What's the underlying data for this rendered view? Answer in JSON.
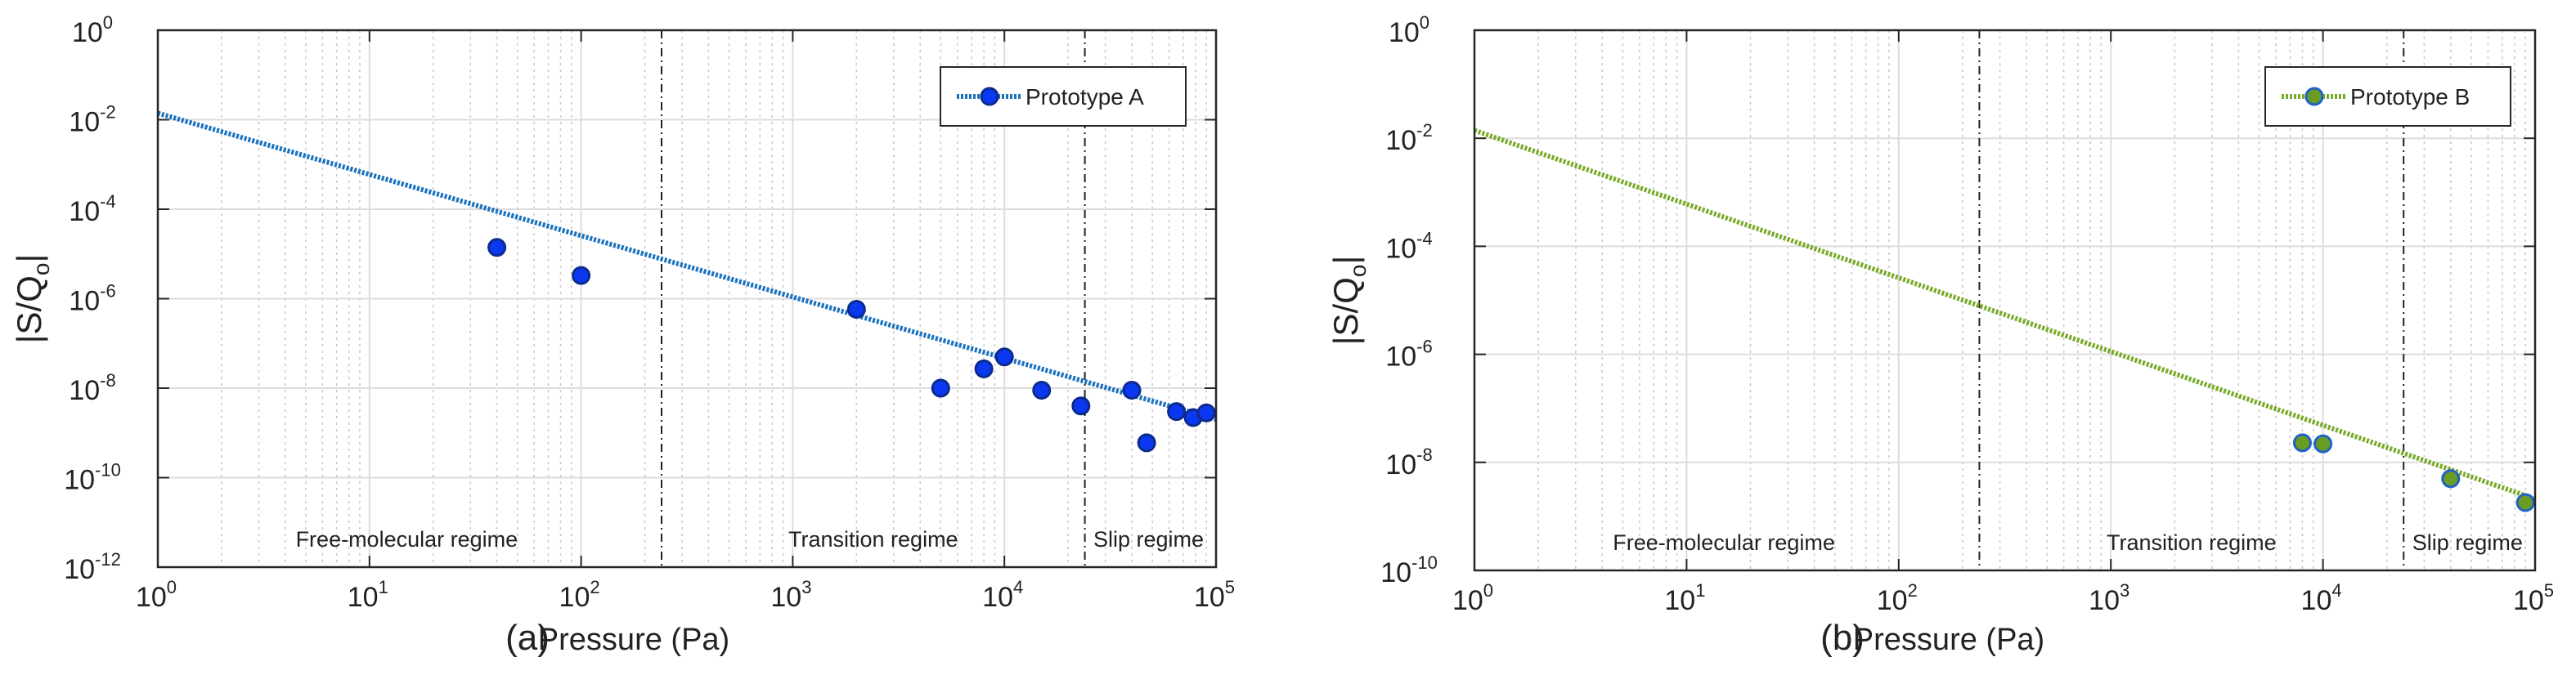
{
  "chart_data": [
    {
      "type": "scatter",
      "panel_label": "(a)",
      "xlabel": "Pressure (Pa)",
      "ylabel_main": "|S/Q",
      "ylabel_sub": "o",
      "ylabel_end": "|",
      "x_scale": "log",
      "y_scale": "log",
      "xlim": [
        1,
        100000
      ],
      "ylim": [
        1e-12,
        1
      ],
      "x_ticks": [
        {
          "base": "10",
          "exp": "0",
          "value": 1
        },
        {
          "base": "10",
          "exp": "1",
          "value": 10
        },
        {
          "base": "10",
          "exp": "2",
          "value": 100
        },
        {
          "base": "10",
          "exp": "3",
          "value": 1000
        },
        {
          "base": "10",
          "exp": "4",
          "value": 10000
        },
        {
          "base": "10",
          "exp": "5",
          "value": 100000
        }
      ],
      "y_ticks": [
        {
          "base": "10",
          "exp": "0",
          "value": 1
        },
        {
          "base": "10",
          "exp": "-2",
          "value": 0.01
        },
        {
          "base": "10",
          "exp": "-4",
          "value": 0.0001
        },
        {
          "base": "10",
          "exp": "-6",
          "value": 1e-06
        },
        {
          "base": "10",
          "exp": "-8",
          "value": 1e-08
        },
        {
          "base": "10",
          "exp": "-10",
          "value": 1e-10
        },
        {
          "base": "10",
          "exp": "-12",
          "value": 1e-12
        }
      ],
      "grid": true,
      "legend_position": "top-right",
      "series": [
        {
          "name": "Prototype A",
          "line_color": "#1a72bf",
          "marker_fill": "#0a38f0",
          "marker_edge": "#0b2a8c",
          "fit_line": {
            "x": [
              1,
              100000
            ],
            "y": [
              0.014,
              2e-09
            ]
          },
          "points": [
            {
              "x": 40,
              "y": 1.4e-05
            },
            {
              "x": 100,
              "y": 3.3e-06
            },
            {
              "x": 2000,
              "y": 5.8e-07
            },
            {
              "x": 5000,
              "y": 1e-08
            },
            {
              "x": 8000,
              "y": 2.7e-08
            },
            {
              "x": 10000,
              "y": 5e-08
            },
            {
              "x": 15000,
              "y": 9e-09
            },
            {
              "x": 23000,
              "y": 4e-09
            },
            {
              "x": 40000,
              "y": 9e-09
            },
            {
              "x": 47000,
              "y": 6e-10
            },
            {
              "x": 65000,
              "y": 3e-09
            },
            {
              "x": 78000,
              "y": 2.2e-09
            },
            {
              "x": 90000,
              "y": 2.8e-09
            }
          ]
        }
      ],
      "regime_boundaries": [
        240,
        24000
      ],
      "regimes": [
        {
          "label": "Free-molecular regime",
          "x": 15
        },
        {
          "label": "Transition regime",
          "x": 2400
        },
        {
          "label": "Slip regime",
          "x": 48000
        }
      ]
    },
    {
      "type": "scatter",
      "panel_label": "(b)",
      "xlabel": "Pressure (Pa)",
      "ylabel_main": "|S/Q",
      "ylabel_sub": "o",
      "ylabel_end": "|",
      "x_scale": "log",
      "y_scale": "log",
      "xlim": [
        1,
        100000
      ],
      "ylim": [
        1e-10,
        1
      ],
      "x_ticks": [
        {
          "base": "10",
          "exp": "0",
          "value": 1
        },
        {
          "base": "10",
          "exp": "1",
          "value": 10
        },
        {
          "base": "10",
          "exp": "2",
          "value": 100
        },
        {
          "base": "10",
          "exp": "3",
          "value": 1000
        },
        {
          "base": "10",
          "exp": "4",
          "value": 10000
        },
        {
          "base": "10",
          "exp": "5",
          "value": 100000
        }
      ],
      "y_ticks": [
        {
          "base": "10",
          "exp": "0",
          "value": 1
        },
        {
          "base": "10",
          "exp": "-2",
          "value": 0.01
        },
        {
          "base": "10",
          "exp": "-4",
          "value": 0.0001
        },
        {
          "base": "10",
          "exp": "-6",
          "value": 1e-06
        },
        {
          "base": "10",
          "exp": "-8",
          "value": 1e-08
        },
        {
          "base": "10",
          "exp": "-10",
          "value": 1e-10
        }
      ],
      "grid": true,
      "legend_position": "top-right",
      "series": [
        {
          "name": "Prototype B",
          "line_color": "#7aaa2a",
          "marker_fill": "#6a9b23",
          "marker_edge": "#1f62c9",
          "fit_line": {
            "x": [
              1,
              100000
            ],
            "y": [
              0.014,
              2.1e-09
            ]
          },
          "points": [
            {
              "x": 8000,
              "y": 2.3e-08
            },
            {
              "x": 10000,
              "y": 2.2e-08
            },
            {
              "x": 40000,
              "y": 5e-09
            },
            {
              "x": 90000,
              "y": 1.8e-09
            }
          ]
        }
      ],
      "regime_boundaries": [
        240,
        24000
      ],
      "regimes": [
        {
          "label": "Free-molecular regime",
          "x": 15
        },
        {
          "label": "Transition regime",
          "x": 2400
        },
        {
          "label": "Slip regime",
          "x": 48000
        }
      ]
    }
  ]
}
